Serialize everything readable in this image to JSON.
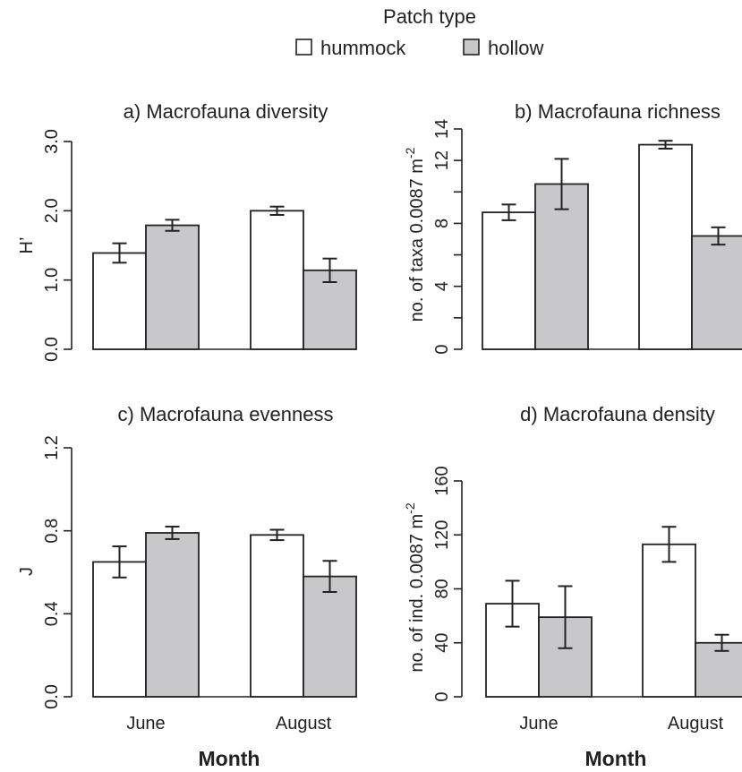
{
  "legend": {
    "title": "Patch type",
    "items": [
      {
        "label": "hummock",
        "color": "#ffffff"
      },
      {
        "label": "hollow",
        "color": "#c8c8ca"
      }
    ]
  },
  "xlabel": "Month",
  "chart_data": [
    {
      "type": "bar",
      "title": "a) Macrofauna diversity",
      "ylabel": "H’",
      "ylabel_super": "",
      "categories": [
        "June",
        "August"
      ],
      "ylim": [
        0,
        3
      ],
      "yticks": [
        0,
        1,
        2,
        3
      ],
      "ytick_labels": [
        "0.0",
        "1.0",
        "2.0",
        "3.0"
      ],
      "show_xticks": false,
      "series": [
        {
          "name": "hummock",
          "values": [
            1.39,
            2.0
          ],
          "errors": [
            0.14,
            0.06
          ]
        },
        {
          "name": "hollow",
          "values": [
            1.79,
            1.14
          ],
          "errors": [
            0.08,
            0.17
          ]
        }
      ]
    },
    {
      "type": "bar",
      "title": "b) Macrofauna richness",
      "ylabel": "no. of taxa 0.0087 m",
      "ylabel_super": "-2",
      "categories": [
        "June",
        "August"
      ],
      "ylim": [
        0,
        14
      ],
      "yticks": [
        0,
        2,
        4,
        6,
        8,
        10,
        12,
        14
      ],
      "ytick_labels": [
        "0",
        "",
        "4",
        "",
        "8",
        "",
        "12",
        "14"
      ],
      "show_xticks": false,
      "series": [
        {
          "name": "hummock",
          "values": [
            8.7,
            13.0
          ],
          "errors": [
            0.5,
            0.25
          ]
        },
        {
          "name": "hollow",
          "values": [
            10.5,
            7.2
          ],
          "errors": [
            1.6,
            0.55
          ]
        }
      ]
    },
    {
      "type": "bar",
      "title": "c) Macrofauna evenness",
      "ylabel": "J",
      "ylabel_super": "",
      "categories": [
        "June",
        "August"
      ],
      "ylim": [
        0,
        1.2
      ],
      "yticks": [
        0,
        0.4,
        0.8,
        1.2
      ],
      "ytick_labels": [
        "0.0",
        "0.4",
        "0.8",
        "1.2"
      ],
      "show_xticks": true,
      "series": [
        {
          "name": "hummock",
          "values": [
            0.65,
            0.78
          ],
          "errors": [
            0.075,
            0.025
          ]
        },
        {
          "name": "hollow",
          "values": [
            0.79,
            0.58
          ],
          "errors": [
            0.03,
            0.075
          ]
        }
      ]
    },
    {
      "type": "bar",
      "title": "d) Macrofauna density",
      "ylabel": "no. of ind. 0.0087 m",
      "ylabel_super": "-2",
      "categories": [
        "June",
        "August"
      ],
      "ylim": [
        0,
        160
      ],
      "yticks": [
        0,
        40,
        80,
        120,
        160
      ],
      "ytick_labels": [
        "0",
        "40",
        "80",
        "120",
        "160"
      ],
      "show_xticks": true,
      "series": [
        {
          "name": "hummock",
          "values": [
            69,
            113
          ],
          "errors": [
            17,
            13
          ]
        },
        {
          "name": "hollow",
          "values": [
            59,
            40
          ],
          "errors": [
            23,
            6
          ]
        }
      ]
    }
  ]
}
